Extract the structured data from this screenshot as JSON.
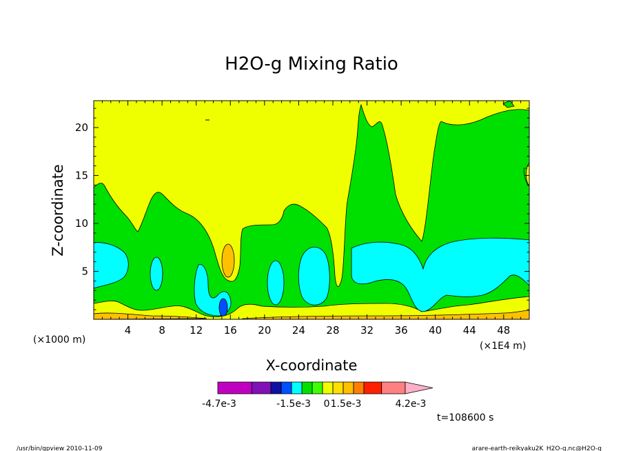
{
  "chart_data": {
    "type": "heatmap",
    "title": "H2O-g Mixing Ratio",
    "xlabel": "X-coordinate",
    "ylabel": "Z-coordinate",
    "x_unit": "(×1E4 m)",
    "y_unit": "(×1000 m)",
    "xlim": [
      0,
      51
    ],
    "ylim": [
      0,
      22.8
    ],
    "x_ticks": [
      4,
      8,
      12,
      16,
      20,
      24,
      28,
      32,
      36,
      40,
      44,
      48
    ],
    "y_ticks": [
      5,
      10,
      15,
      20
    ],
    "colorbar": {
      "levels": [
        -0.0047,
        -0.0042,
        -0.0036,
        -0.003,
        -0.0021,
        -0.0015,
        -0.0009,
        -0.0003,
        0,
        0.0003,
        0.0009,
        0.0015,
        0.0021,
        0.003,
        0.0042
      ],
      "colors": [
        "#c000c0",
        "#8010b8",
        "#1010a0",
        "#0050ff",
        "#00ffff",
        "#00e000",
        "#40ff00",
        "#f0ff00",
        "#ffe000",
        "#ffc000",
        "#ff8000",
        "#ff2000",
        "#ff8080",
        "#ffb0c8"
      ],
      "labels": [
        "-4.7e-3",
        "-1.5e-3",
        "0",
        "1.5e-3",
        "4.2e-3"
      ]
    },
    "time_label": "t=108600 s",
    "dominant_field_color": "#f0ff00"
  },
  "footer": {
    "left": "/usr/bin/gpview  2010-11-09",
    "right": "arare-earth-reikyaku2K_H2O-g.nc@H2O-g"
  }
}
